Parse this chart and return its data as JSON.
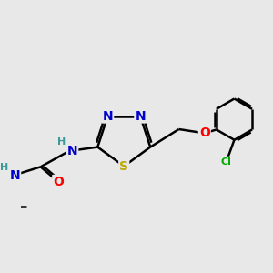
{
  "background_color": "#e8e8e8",
  "bond_color": "#000000",
  "bond_width": 1.8,
  "atom_colors": {
    "N": "#0000cc",
    "S": "#bbaa00",
    "O": "#ff0000",
    "Cl": "#00aa00",
    "H": "#3a9a9a",
    "C": "#000000"
  },
  "font_size": 10,
  "font_size_small": 8,
  "figsize": [
    3.0,
    3.0
  ],
  "dpi": 100
}
